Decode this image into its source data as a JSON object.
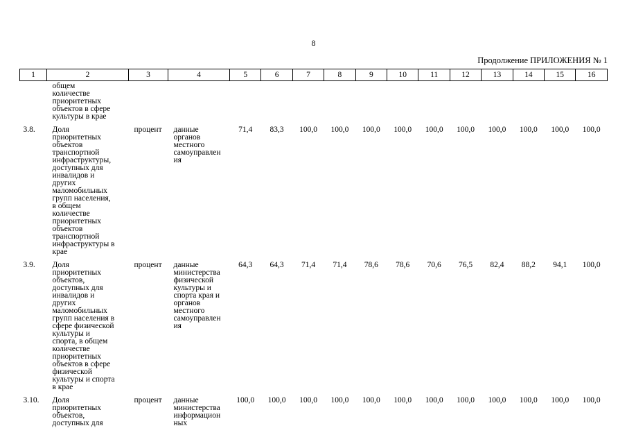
{
  "page": {
    "number": "8",
    "continuation": "Продолжение ПРИЛОЖЕНИЯ № 1"
  },
  "table": {
    "columns": [
      "1",
      "2",
      "3",
      "4",
      "5",
      "6",
      "7",
      "8",
      "9",
      "10",
      "11",
      "12",
      "13",
      "14",
      "15",
      "16"
    ],
    "rows": [
      {
        "num": "",
        "name": "общем\nколичестве\nприоритетных\nобъектов в сфере\nкультуры в крае",
        "unit": "",
        "source": "",
        "values": [
          "",
          "",
          "",
          "",
          "",
          "",
          "",
          "",
          "",
          "",
          "",
          ""
        ]
      },
      {
        "num": "3.8.",
        "name": "Доля\nприоритетных\nобъектов\nтранспортной\nинфраструктуры,\nдоступных для\nинвалидов и\nдругих\nмаломобильных\nгрупп населения,\nв общем\nколичестве\nприоритетных\nобъектов\nтранспортной\nинфраструктуры в\nкрае",
        "unit": "процент",
        "source": "данные\nорганов\nместного\nсамоуправлен\nия",
        "values": [
          "71,4",
          "83,3",
          "100,0",
          "100,0",
          "100,0",
          "100,0",
          "100,0",
          "100,0",
          "100,0",
          "100,0",
          "100,0",
          "100,0"
        ]
      },
      {
        "num": "3.9.",
        "name": "Доля\nприоритетных\nобъектов,\nдоступных для\nинвалидов и\nдругих\nмаломобильных\nгрупп населения в\nсфере физической\nкультуры и\nспорта, в общем\nколичестве\nприоритетных\nобъектов в сфере\nфизической\nкультуры и спорта\nв крае",
        "unit": "процент",
        "source": "данные\nминистерства\nфизической\nкультуры и\nспорта края и\nорганов\nместного\nсамоуправлен\nия",
        "values": [
          "64,3",
          "64,3",
          "71,4",
          "71,4",
          "78,6",
          "78,6",
          "70,6",
          "76,5",
          "82,4",
          "88,2",
          "94,1",
          "100,0"
        ]
      },
      {
        "num": "3.10.",
        "name": "Доля\nприоритетных\nобъектов,\nдоступных для",
        "unit": "процент",
        "source": "данные\nминистерства\nинформацион\nных",
        "values": [
          "100,0",
          "100,0",
          "100,0",
          "100,0",
          "100,0",
          "100,0",
          "100,0",
          "100,0",
          "100,0",
          "100,0",
          "100,0",
          "100,0"
        ]
      }
    ]
  }
}
